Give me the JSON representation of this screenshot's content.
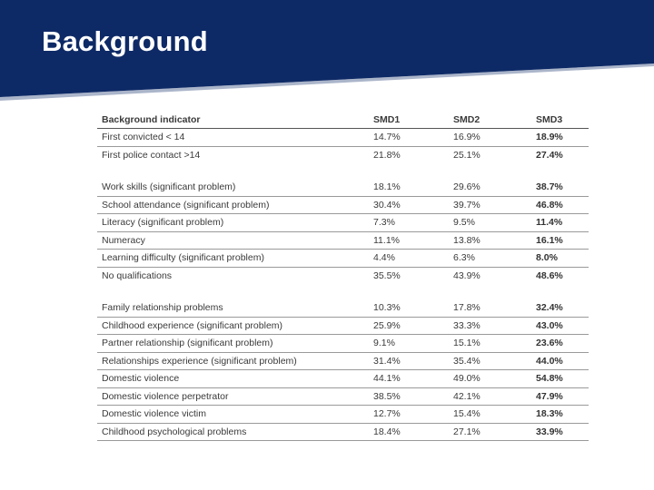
{
  "slide": {
    "title": "Background"
  },
  "colors": {
    "banner": "#0e2a66",
    "accent_stripe": "#0e2a66"
  },
  "table": {
    "headers": [
      "Background indicator",
      "SMD1",
      "SMD2",
      "SMD3"
    ],
    "groups": [
      [
        [
          "First convicted < 14",
          "14.7%",
          "16.9%",
          "18.9%"
        ],
        [
          "First police contact >14",
          "21.8%",
          "25.1%",
          "27.4%"
        ]
      ],
      [
        [
          "Work skills (significant problem)",
          "18.1%",
          "29.6%",
          "38.7%"
        ],
        [
          "School attendance (significant problem)",
          "30.4%",
          "39.7%",
          "46.8%"
        ],
        [
          "Literacy (significant problem)",
          "7.3%",
          "9.5%",
          "11.4%"
        ],
        [
          "Numeracy",
          "11.1%",
          "13.8%",
          "16.1%"
        ],
        [
          "Learning difficulty (significant problem)",
          "4.4%",
          "6.3%",
          "8.0%"
        ],
        [
          "No qualifications",
          "35.5%",
          "43.9%",
          "48.6%"
        ]
      ],
      [
        [
          "Family relationship problems",
          "10.3%",
          "17.8%",
          "32.4%"
        ],
        [
          "Childhood experience (significant problem)",
          "25.9%",
          "33.3%",
          "43.0%"
        ],
        [
          "Partner relationship (significant problem)",
          "9.1%",
          "15.1%",
          "23.6%"
        ],
        [
          "Relationships experience (significant problem)",
          "31.4%",
          "35.4%",
          "44.0%"
        ],
        [
          "Domestic violence",
          "44.1%",
          "49.0%",
          "54.8%"
        ],
        [
          "Domestic violence perpetrator",
          "38.5%",
          "42.1%",
          "47.9%"
        ],
        [
          "Domestic violence victim",
          "12.7%",
          "15.4%",
          "18.3%"
        ],
        [
          "Childhood psychological problems",
          "18.4%",
          "27.1%",
          "33.9%"
        ]
      ]
    ]
  }
}
